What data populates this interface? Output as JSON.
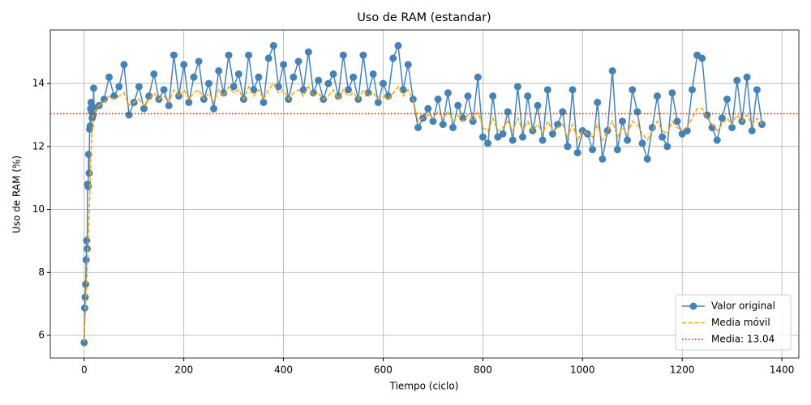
{
  "chart_data": {
    "type": "line",
    "title": "Uso de RAM (estandar)",
    "x_label": "Tiempo (ciclo)",
    "y_label": "Uso de RAM (%)",
    "x": [
      0,
      1,
      2,
      3,
      4,
      5,
      6,
      7,
      8,
      9,
      10,
      11,
      12,
      13,
      14,
      15,
      16,
      17,
      18,
      19,
      20,
      30,
      40,
      50,
      60,
      70,
      80,
      90,
      100,
      110,
      120,
      130,
      140,
      150,
      160,
      170,
      180,
      190,
      200,
      210,
      220,
      230,
      240,
      250,
      260,
      270,
      280,
      290,
      300,
      310,
      320,
      330,
      340,
      350,
      360,
      370,
      380,
      390,
      400,
      410,
      420,
      430,
      440,
      450,
      460,
      470,
      480,
      490,
      500,
      510,
      520,
      530,
      540,
      550,
      560,
      570,
      580,
      590,
      600,
      610,
      620,
      630,
      640,
      650,
      660,
      670,
      680,
      690,
      700,
      710,
      720,
      730,
      740,
      750,
      760,
      770,
      780,
      790,
      800,
      810,
      820,
      830,
      840,
      850,
      860,
      870,
      880,
      890,
      900,
      910,
      920,
      930,
      940,
      950,
      960,
      970,
      980,
      990,
      1000,
      1010,
      1020,
      1030,
      1040,
      1050,
      1060,
      1070,
      1080,
      1090,
      1100,
      1110,
      1120,
      1130,
      1140,
      1150,
      1160,
      1170,
      1180,
      1190,
      1200,
      1210,
      1220,
      1230,
      1240,
      1250,
      1260,
      1270,
      1280,
      1290,
      1300,
      1310,
      1320,
      1330,
      1340,
      1350,
      1360
    ],
    "series": [
      {
        "name": "Valor original",
        "color": "#4682b4",
        "style": "solid",
        "marker": true,
        "values": [
          5.77,
          6.87,
          7.21,
          7.62,
          8.4,
          9.01,
          8.75,
          10.8,
          10.73,
          11.75,
          11.15,
          12.55,
          12.65,
          13.2,
          13.4,
          13.1,
          12.9,
          13.25,
          13.0,
          13.85,
          13.2,
          13.3,
          13.5,
          14.2,
          13.6,
          13.9,
          14.6,
          13.0,
          13.4,
          13.9,
          13.2,
          13.6,
          14.3,
          13.5,
          13.8,
          13.3,
          14.9,
          13.6,
          14.6,
          13.4,
          14.2,
          14.7,
          13.5,
          14.0,
          13.2,
          14.4,
          13.7,
          14.9,
          13.9,
          14.3,
          13.5,
          14.9,
          13.8,
          14.2,
          13.4,
          14.8,
          15.2,
          13.9,
          14.6,
          13.5,
          14.2,
          14.7,
          13.8,
          15.0,
          13.7,
          14.1,
          13.5,
          14.0,
          14.3,
          13.6,
          14.9,
          13.8,
          14.2,
          13.5,
          14.9,
          13.7,
          14.3,
          13.4,
          14.0,
          13.6,
          14.8,
          15.2,
          13.8,
          14.6,
          13.5,
          12.6,
          12.9,
          13.2,
          12.8,
          13.5,
          12.7,
          13.7,
          12.6,
          13.3,
          12.9,
          13.6,
          12.8,
          14.2,
          12.3,
          12.1,
          13.6,
          12.3,
          12.4,
          13.1,
          12.2,
          13.9,
          12.3,
          13.6,
          12.5,
          13.3,
          12.2,
          13.8,
          12.4,
          12.7,
          13.1,
          12.0,
          13.8,
          11.8,
          12.5,
          12.4,
          11.9,
          13.4,
          11.6,
          12.5,
          14.4,
          11.9,
          12.8,
          12.2,
          13.8,
          13.1,
          12.1,
          11.6,
          12.6,
          13.6,
          12.3,
          12.0,
          13.7,
          12.8,
          12.4,
          12.5,
          13.8,
          14.9,
          14.8,
          13.0,
          12.6,
          12.2,
          12.9,
          13.5,
          12.6,
          14.1,
          12.8,
          14.2,
          12.5,
          13.8,
          12.7
        ]
      },
      {
        "name": "Media móvil",
        "color": "#ffa500",
        "style": "dashed",
        "marker": false,
        "values": [
          5.8,
          6.3,
          6.6,
          7.0,
          7.3,
          7.7,
          8.0,
          8.6,
          9.0,
          9.4,
          9.8,
          10.3,
          10.8,
          11.3,
          11.8,
          12.2,
          12.5,
          12.8,
          13.0,
          13.1,
          13.1,
          13.3,
          13.4,
          13.6,
          13.5,
          13.6,
          13.7,
          13.3,
          13.4,
          13.5,
          13.3,
          13.5,
          13.7,
          13.5,
          13.6,
          13.4,
          13.8,
          13.6,
          13.8,
          13.5,
          13.7,
          13.8,
          13.5,
          13.7,
          13.4,
          13.8,
          13.6,
          13.9,
          13.7,
          13.8,
          13.5,
          13.9,
          13.6,
          13.8,
          13.5,
          13.8,
          14.0,
          13.7,
          13.8,
          13.5,
          13.7,
          13.8,
          13.6,
          13.9,
          13.6,
          13.7,
          13.5,
          13.6,
          13.8,
          13.5,
          13.8,
          13.6,
          13.7,
          13.5,
          13.8,
          13.6,
          13.7,
          13.5,
          13.6,
          13.5,
          13.7,
          13.9,
          13.6,
          13.8,
          13.5,
          12.8,
          12.9,
          13.0,
          12.9,
          13.1,
          12.9,
          13.1,
          12.8,
          13.0,
          12.8,
          13.0,
          12.8,
          13.1,
          12.6,
          12.5,
          12.9,
          12.5,
          12.6,
          12.8,
          12.5,
          12.9,
          12.5,
          12.8,
          12.5,
          12.7,
          12.4,
          12.8,
          12.5,
          12.6,
          12.7,
          12.3,
          12.7,
          12.2,
          12.5,
          12.4,
          12.3,
          12.7,
          12.2,
          12.5,
          12.8,
          12.3,
          12.6,
          12.4,
          12.8,
          12.7,
          12.4,
          12.2,
          12.5,
          12.8,
          12.5,
          12.4,
          12.8,
          12.6,
          12.5,
          12.6,
          12.9,
          13.2,
          13.2,
          12.9,
          12.7,
          12.5,
          12.7,
          12.9,
          12.7,
          13.0,
          12.8,
          13.0,
          12.7,
          12.9,
          12.7
        ]
      }
    ],
    "hline": {
      "name": "Media: 13.04",
      "value": 13.04,
      "color": "#ff0000"
    },
    "xlim": [
      -68,
      1434
    ],
    "ylim": [
      5.28,
      15.7
    ],
    "xticks": [
      0,
      200,
      400,
      600,
      800,
      1000,
      1200,
      1400
    ],
    "yticks": [
      6,
      8,
      10,
      12,
      14
    ],
    "grid": true,
    "legend": "lower right"
  }
}
